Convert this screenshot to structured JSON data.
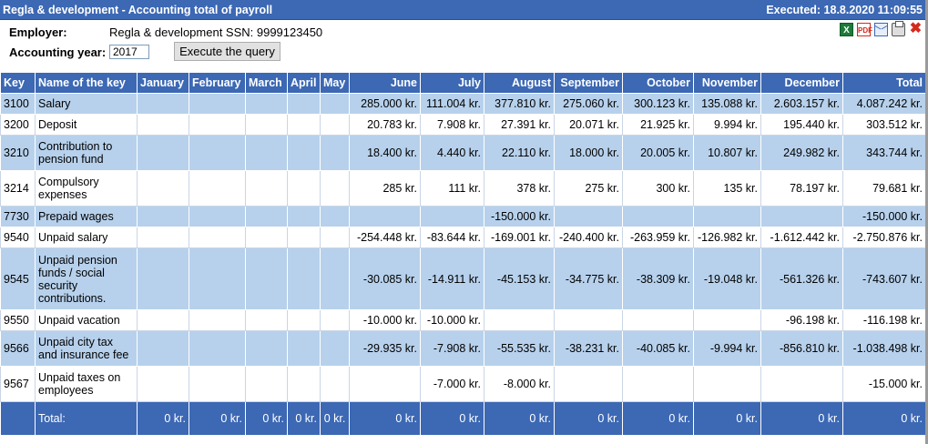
{
  "titlebar": {
    "title": "Regla & development - Accounting total of payroll",
    "executed": "Executed:  18.8.2020 11:09:55"
  },
  "header": {
    "employer_label": "Employer:",
    "employer_value": "Regla & development   SSN: 9999123450",
    "year_label": "Accounting year:",
    "year_value": "2017",
    "execute_button": "Execute the query"
  },
  "icons": [
    "excel-icon",
    "pdf-icon",
    "mail-icon",
    "print-icon",
    "close-icon"
  ],
  "colors": {
    "header_blue": "#3c68b4",
    "row_blue": "#b7d1ec",
    "row_white": "#ffffff"
  },
  "table": {
    "columns": [
      "Key",
      "Name of the key",
      "January",
      "February",
      "March",
      "April",
      "May",
      "June",
      "July",
      "August",
      "September",
      "October",
      "November",
      "December",
      "Total"
    ],
    "rows": [
      {
        "key": "3100",
        "name": [
          "Salary"
        ],
        "cells": [
          "",
          "",
          "",
          "",
          "",
          "285.000 kr.",
          "111.004 kr.",
          "377.810 kr.",
          "275.060 kr.",
          "300.123 kr.",
          "135.088 kr.",
          "2.603.157 kr.",
          "4.087.242 kr."
        ]
      },
      {
        "key": "3200",
        "name": [
          "Deposit"
        ],
        "cells": [
          "",
          "",
          "",
          "",
          "",
          "20.783 kr.",
          "7.908 kr.",
          "27.391 kr.",
          "20.071 kr.",
          "21.925 kr.",
          "9.994 kr.",
          "195.440 kr.",
          "303.512 kr."
        ]
      },
      {
        "key": "3210",
        "name": [
          "Contribution to",
          "pension fund"
        ],
        "cells": [
          "",
          "",
          "",
          "",
          "",
          "18.400 kr.",
          "4.440 kr.",
          "22.110 kr.",
          "18.000 kr.",
          "20.005 kr.",
          "10.807 kr.",
          "249.982 kr.",
          "343.744 kr."
        ]
      },
      {
        "key": "3214",
        "name": [
          "Compulsory",
          "expenses"
        ],
        "cells": [
          "",
          "",
          "",
          "",
          "",
          "285 kr.",
          "111 kr.",
          "378 kr.",
          "275 kr.",
          "300 kr.",
          "135 kr.",
          "78.197 kr.",
          "79.681 kr."
        ]
      },
      {
        "key": "7730",
        "name": [
          "Prepaid wages"
        ],
        "cells": [
          "",
          "",
          "",
          "",
          "",
          "",
          "",
          "-150.000 kr.",
          "",
          "",
          "",
          "",
          "-150.000 kr."
        ]
      },
      {
        "key": "9540",
        "name": [
          "Unpaid salary"
        ],
        "cells": [
          "",
          "",
          "",
          "",
          "",
          "-254.448 kr.",
          "-83.644 kr.",
          "-169.001 kr.",
          "-240.400 kr.",
          "-263.959 kr.",
          "-126.982 kr.",
          "-1.612.442 kr.",
          "-2.750.876 kr."
        ]
      },
      {
        "key": "9545",
        "name": [
          "Unpaid pension",
          "funds / social",
          "security",
          "contributions."
        ],
        "cells": [
          "",
          "",
          "",
          "",
          "",
          "-30.085 kr.",
          "-14.911 kr.",
          "-45.153 kr.",
          "-34.775 kr.",
          "-38.309 kr.",
          "-19.048 kr.",
          "-561.326 kr.",
          "-743.607 kr."
        ]
      },
      {
        "key": "9550",
        "name": [
          "Unpaid vacation"
        ],
        "cells": [
          "",
          "",
          "",
          "",
          "",
          "-10.000 kr.",
          "-10.000 kr.",
          "",
          "",
          "",
          "",
          "-96.198 kr.",
          "-116.198 kr."
        ]
      },
      {
        "key": "9566",
        "name": [
          "Unpaid city tax",
          "and insurance fee"
        ],
        "cells": [
          "",
          "",
          "",
          "",
          "",
          "-29.935 kr.",
          "-7.908 kr.",
          "-55.535 kr.",
          "-38.231 kr.",
          "-40.085 kr.",
          "-9.994 kr.",
          "-856.810 kr.",
          "-1.038.498 kr."
        ]
      },
      {
        "key": "9567",
        "name": [
          "Unpaid taxes on",
          "employees"
        ],
        "cells": [
          "",
          "",
          "",
          "",
          "",
          "",
          "-7.000 kr.",
          "-8.000 kr.",
          "",
          "",
          "",
          "",
          "-15.000 kr."
        ]
      }
    ],
    "total_row": {
      "label": "Total:",
      "cells": [
        "0 kr.",
        "0 kr.",
        "0 kr.",
        "0 kr.",
        "0 kr.",
        "0 kr.",
        "0 kr.",
        "0 kr.",
        "0 kr.",
        "0 kr.",
        "0 kr.",
        "0 kr.",
        "0 kr."
      ]
    }
  }
}
